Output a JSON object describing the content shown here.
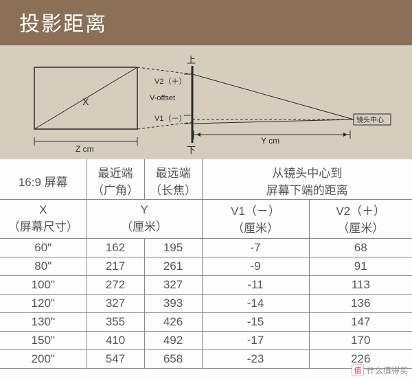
{
  "title": "投影距离",
  "diagram": {
    "background": "#d6cdbd",
    "stroke": "#2a2a2a",
    "text_color": "#2a2a2a",
    "labels": {
      "top": "上",
      "bottom": "下",
      "v2": "V2（＋）",
      "voffset": "V-offset",
      "v1": "V1（－）",
      "x": "X",
      "z": "Z cm",
      "y": "Y cm",
      "lens_center": "镜头中心"
    }
  },
  "table": {
    "header1": {
      "screen": "16:9 屏幕",
      "near": "最近端\n（广角）",
      "far": "最远端\n（长焦）",
      "lens_dist": "从镜头中心到\n屏幕下端的距离"
    },
    "header2": {
      "x": "X\n（屏幕尺寸）",
      "y": "Y\n（厘米）",
      "v1": "V1（－）\n（厘米）",
      "v2": "V2（＋）\n（厘米）"
    },
    "rows": [
      {
        "x": "60\"",
        "near": "162",
        "far": "195",
        "v1": "-7",
        "v2": "68"
      },
      {
        "x": "80\"",
        "near": "217",
        "far": "261",
        "v1": "-9",
        "v2": "91"
      },
      {
        "x": "100\"",
        "near": "272",
        "far": "327",
        "v1": "-11",
        "v2": "113"
      },
      {
        "x": "120\"",
        "near": "327",
        "far": "393",
        "v1": "-14",
        "v2": "136"
      },
      {
        "x": "130\"",
        "near": "355",
        "far": "426",
        "v1": "-15",
        "v2": "147"
      },
      {
        "x": "150\"",
        "near": "410",
        "far": "492",
        "v1": "-17",
        "v2": "170"
      },
      {
        "x": "200\"",
        "near": "547",
        "far": "658",
        "v1": "-23",
        "v2": "226"
      }
    ]
  },
  "watermark": {
    "logo": "值",
    "text": "什么值得买"
  }
}
